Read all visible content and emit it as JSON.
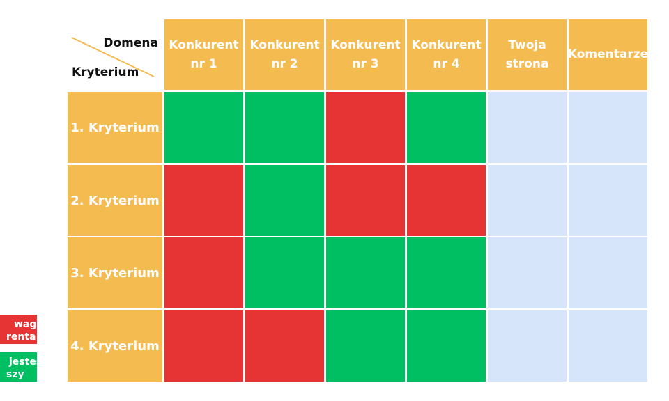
{
  "table": {
    "corner": {
      "top": "Domena",
      "bottom": "Kryterium"
    },
    "columns": [
      [
        "Konkurent",
        "nr 1"
      ],
      [
        "Konkurent",
        "nr 2"
      ],
      [
        "Konkurent",
        "nr 3"
      ],
      [
        "Konkurent",
        "nr 4"
      ],
      [
        "Twoja",
        "strona"
      ],
      [
        "Komentarze"
      ]
    ],
    "rows": [
      "1. Kryterium",
      "2. Kryterium",
      "3. Kryterium",
      "4. Kryterium"
    ],
    "statuses": [
      [
        "green",
        "green",
        "red",
        "green",
        "empty",
        "empty"
      ],
      [
        "red",
        "green",
        "red",
        "red",
        "empty",
        "empty"
      ],
      [
        "red",
        "green",
        "green",
        "green",
        "empty",
        "empty"
      ],
      [
        "red",
        "red",
        "green",
        "green",
        "empty",
        "empty"
      ]
    ]
  },
  "legend": [
    {
      "color": "red",
      "lines": [
        "waga",
        "renta"
      ]
    },
    {
      "color": "green",
      "lines": [
        "jesteś",
        "szy"
      ]
    }
  ],
  "colors": {
    "header": "#f4bc50",
    "green": "#00bf63",
    "red": "#e53433",
    "empty": "#d7e5fa"
  }
}
